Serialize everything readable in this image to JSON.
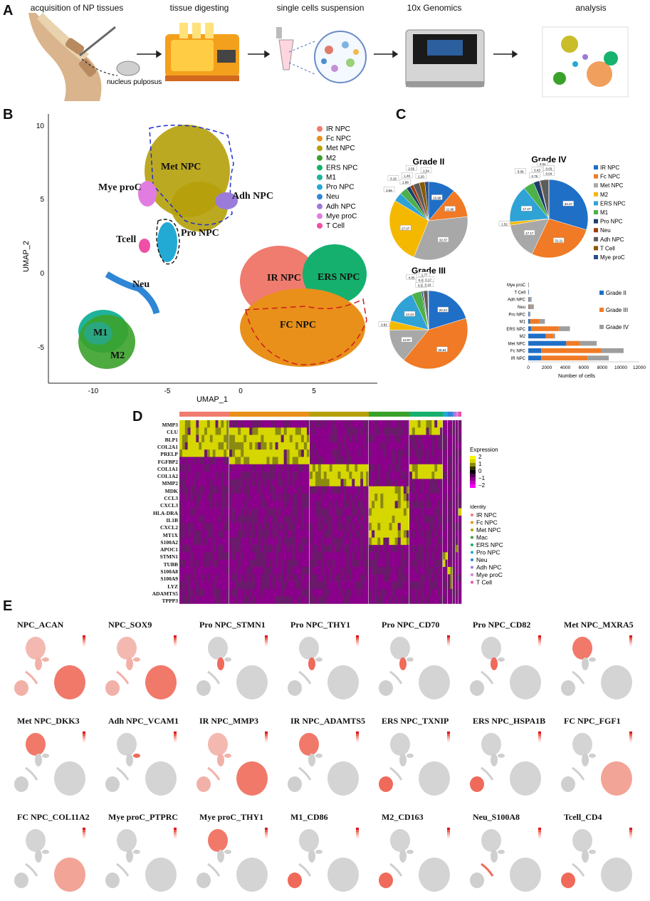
{
  "panels": {
    "a": "A",
    "b": "B",
    "c": "C",
    "d": "D",
    "e": "E"
  },
  "workflow": {
    "steps": [
      "acquisition of NP tissues",
      "tissue digesting",
      "single cells suspension",
      "10x Genomics",
      "analysis"
    ],
    "sublabel": "nucleus pulposus"
  },
  "umap": {
    "xlabel": "UMAP_1",
    "ylabel": "UMAP_2",
    "xticks": [
      "-10",
      "-5",
      "0",
      "5"
    ],
    "yticks": [
      "10",
      "5",
      "0",
      "-5"
    ],
    "cluster_labels": [
      "Met NPC",
      "Mye proC",
      "Adh NPC",
      "Tcell",
      "Pro NPC",
      "IR NPC",
      "ERS NPC",
      "Neu",
      "FC NPC",
      "M1",
      "M2"
    ],
    "legend": [
      {
        "name": "IR NPC",
        "color": "#f07b6f"
      },
      {
        "name": "Fc NPC",
        "color": "#e8901a"
      },
      {
        "name": "Met NPC",
        "color": "#b5a00a"
      },
      {
        "name": "M2",
        "color": "#3aa22a"
      },
      {
        "name": "ERS NPC",
        "color": "#16b06e"
      },
      {
        "name": "M1",
        "color": "#1fb39a"
      },
      {
        "name": "Pro NPC",
        "color": "#22a9d4"
      },
      {
        "name": "Neu",
        "color": "#2f86d6"
      },
      {
        "name": "Adh NPC",
        "color": "#9b7bd9"
      },
      {
        "name": "Mye proC",
        "color": "#e17de0"
      },
      {
        "name": "T Cell",
        "color": "#f04fa6"
      }
    ]
  },
  "chart_data": [
    {
      "type": "pie",
      "title": "Grade II",
      "slices": [
        {
          "label": "IR NPC",
          "value": 10.98
        },
        {
          "label": "Fc NPC",
          "value": 11.96
        },
        {
          "label": "Met NPC",
          "value": 32.37
        },
        {
          "label": "M2",
          "value": 27.07
        },
        {
          "label": "ERS NPC",
          "value": 3.56
        },
        {
          "label": "M1",
          "value": 3.19
        },
        {
          "label": "Pro NPC",
          "value": 1.68
        },
        {
          "label": "Neu",
          "value": 1.4
        },
        {
          "label": "Adh NPC",
          "value": 2.55
        },
        {
          "label": "T Cell",
          "value": 2.2
        },
        {
          "label": "Mye proC",
          "value": 1.54
        }
      ]
    },
    {
      "type": "pie",
      "title": "Grade IV",
      "slices": [
        {
          "label": "IR NPC",
          "value": 33.47
        },
        {
          "label": "Fc NPC",
          "value": 31.11
        },
        {
          "label": "Met NPC",
          "value": 17.17
        },
        {
          "label": "M2",
          "value": 1.52
        },
        {
          "label": "ERS NPC",
          "value": 17.47
        },
        {
          "label": "M1",
          "value": 5.06
        },
        {
          "label": "Pro NPC",
          "value": 2.75
        },
        {
          "label": "Neu",
          "value": 0.43
        },
        {
          "label": "Adh NPC",
          "value": 4.01
        },
        {
          "label": "T Cell",
          "value": 0.04
        },
        {
          "label": "Mye proC",
          "value": 0.03
        }
      ]
    },
    {
      "type": "pie",
      "title": "Grade III",
      "slices": [
        {
          "label": "IR NPC",
          "value": 20.24
        },
        {
          "label": "Fc NPC",
          "value": 40.64
        },
        {
          "label": "Met NPC",
          "value": 13.97
        },
        {
          "label": "M2",
          "value": 3.82
        },
        {
          "label": "ERS NPC",
          "value": 14.24
        },
        {
          "label": "M1",
          "value": 4.05
        },
        {
          "label": "Pro NPC",
          "value": 0.56
        },
        {
          "label": "Neu",
          "value": 0.33
        },
        {
          "label": "Adh NPC",
          "value": 1.77
        },
        {
          "label": "T Cell",
          "value": 0.16
        },
        {
          "label": "Mye proC",
          "value": 0.17
        }
      ]
    },
    {
      "type": "bar",
      "orientation": "horizontal",
      "stacked": true,
      "categories": [
        "Mye proC",
        "T Cell",
        "Adh NPC",
        "Neu",
        "Pro NPC",
        "M1",
        "ERS NPC",
        "M2",
        "Met NPC",
        "Fc NPC",
        "IR NPC"
      ],
      "series": [
        {
          "name": "Grade II",
          "color": "#1f6fc7",
          "values": [
            30,
            40,
            60,
            50,
            70,
            200,
            300,
            1900,
            4100,
            1400,
            1400
          ]
        },
        {
          "name": "Grade III",
          "color": "#f07a25",
          "values": [
            10,
            10,
            100,
            150,
            60,
            1000,
            3000,
            800,
            1500,
            6500,
            5000
          ]
        },
        {
          "name": "Grade IV",
          "color": "#9e9e9e",
          "values": [
            5,
            5,
            200,
            400,
            100,
            600,
            1200,
            200,
            1800,
            2400,
            2300
          ]
        }
      ],
      "xlabel": "Number of cells",
      "xticks": [
        "0",
        "2000",
        "4000",
        "6000",
        "8000",
        "10000",
        "12000"
      ],
      "xlim": [
        0,
        12000
      ]
    }
  ],
  "pie_legend": [
    "IR NPC",
    "Fc NPC",
    "Met NPC",
    "M2",
    "ERS NPC",
    "M1",
    "Pro NPC",
    "Neu",
    "Adh NPC",
    "T Cell",
    "Mye proC"
  ],
  "pie_colors": [
    "#1f6fc7",
    "#f07a25",
    "#a8a8a8",
    "#f5b800",
    "#2fa2d6",
    "#4db04a",
    "#1c3d6b",
    "#9c3d10",
    "#5c5c5c",
    "#8a5a00",
    "#2a4f86"
  ],
  "heatmap": {
    "genes": [
      "MMP3",
      "CLU",
      "BLP1",
      "COL2A1",
      "PRELP",
      "FGFBP2",
      "COL1A1",
      "COL1A2",
      "MMP2",
      "MDK",
      "CCL3",
      "CXCL3",
      "HLA-DRA",
      "IL1B",
      "CXCL2",
      "MT1X",
      "S100A2",
      "APOC1",
      "STMN1",
      "TUBB",
      "S100A8",
      "S100A9",
      "LYZ",
      "ADAMTS5",
      "TPPP3"
    ],
    "expression_title": "Expression",
    "expression_ticks": [
      "2",
      "1",
      "0",
      "−1",
      "−2"
    ],
    "identity_title": "Identity",
    "identity": [
      {
        "name": "IR NPC",
        "color": "#f07b6f"
      },
      {
        "name": "Fc NPC",
        "color": "#e8901a"
      },
      {
        "name": "Met NPC",
        "color": "#b5a00a"
      },
      {
        "name": "Mac",
        "color": "#3aa22a"
      },
      {
        "name": "ERS NPC",
        "color": "#16b06e"
      },
      {
        "name": "Pro NPC",
        "color": "#22a9d4"
      },
      {
        "name": "Neu",
        "color": "#2f86d6"
      },
      {
        "name": "Adh NPC",
        "color": "#9b7bd9"
      },
      {
        "name": "Mye proC",
        "color": "#e17de0"
      },
      {
        "name": "T Cell",
        "color": "#f04fa6"
      }
    ]
  },
  "feature_plots": [
    "NPC_ACAN",
    "NPC_SOX9",
    "Pro NPC_STMN1",
    "Pro NPC_THY1",
    "Pro NPC_CD70",
    "Pro NPC_CD82",
    "Met NPC_MXRA5",
    "Met NPC_DKK3",
    "Adh NPC_VCAM1",
    "IR NPC_MMP3",
    "IR NPC_ADAMTS5",
    "ERS NPC_TXNIP",
    "ERS NPC_HSPA1B",
    "FC NPC_FGF1",
    "FC NPC_COL11A2",
    "Mye proC_PTPRC",
    "Mye proC_THY1",
    "M1_CD86",
    "M2_CD163",
    "Neu_S100A8",
    "Tcell_CD4"
  ]
}
